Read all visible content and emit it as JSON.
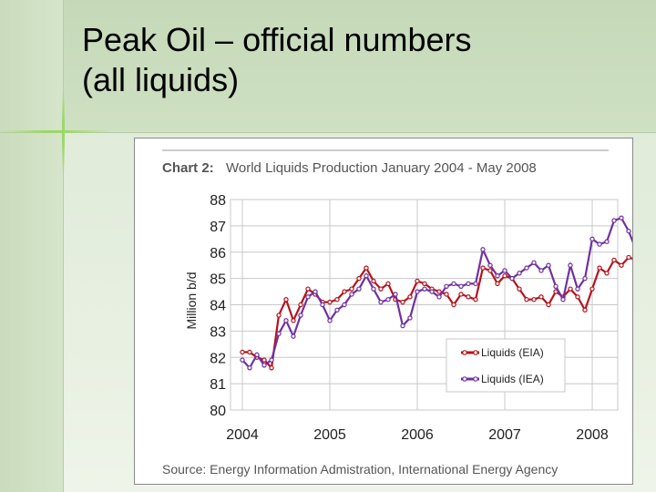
{
  "slide": {
    "title_line1": "Peak Oil – official numbers",
    "title_line2": "(all liquids)"
  },
  "chart_data": {
    "type": "line",
    "title": "Chart 2:",
    "subtitle": "World Liquids Production January 2004 - May 2008",
    "xlabel": "",
    "ylabel": "Million b/d",
    "xlim": [
      2004.0,
      2008.42
    ],
    "ylim": [
      80,
      88
    ],
    "yticks": [
      80,
      81,
      82,
      83,
      84,
      85,
      86,
      87,
      88
    ],
    "xticks": [
      "2004",
      "2005",
      "2006",
      "2007",
      "2008"
    ],
    "grid": true,
    "legend_position": "lower-right",
    "source": "Source: Energy Information Admistration, International Energy Agency",
    "colors": {
      "eia": "#b5121b",
      "iea": "#7030a0",
      "grid": "#c8c8c8"
    },
    "series": [
      {
        "name": "Liquids (EIA)",
        "values": [
          82.2,
          82.2,
          82.0,
          81.9,
          81.6,
          83.6,
          84.2,
          83.4,
          84.0,
          84.6,
          84.4,
          84.1,
          84.1,
          84.2,
          84.5,
          84.6,
          85.0,
          85.4,
          84.9,
          84.6,
          84.8,
          84.2,
          84.1,
          84.3,
          84.9,
          84.8,
          84.6,
          84.5,
          84.4,
          84.0,
          84.4,
          84.3,
          84.2,
          85.4,
          85.3,
          84.8,
          85.1,
          85.0,
          84.6,
          84.2,
          84.2,
          84.3,
          84.0,
          84.5,
          84.3,
          84.6,
          84.3,
          83.8,
          84.6,
          85.4,
          85.2,
          85.7,
          85.5,
          85.8,
          85.7
        ]
      },
      {
        "name": "Liquids (IEA)",
        "values": [
          81.9,
          81.6,
          82.1,
          81.7,
          81.9,
          82.9,
          83.4,
          82.8,
          83.6,
          84.3,
          84.5,
          84.0,
          83.4,
          83.8,
          84.0,
          84.4,
          84.6,
          85.1,
          84.6,
          84.1,
          84.2,
          84.4,
          83.2,
          83.5,
          84.5,
          84.6,
          84.5,
          84.3,
          84.7,
          84.8,
          84.7,
          84.8,
          84.8,
          86.1,
          85.5,
          85.1,
          85.3,
          85.0,
          85.2,
          85.4,
          85.6,
          85.3,
          85.5,
          84.7,
          84.2,
          85.5,
          84.6,
          85.0,
          86.5,
          86.3,
          86.4,
          87.2,
          87.3,
          86.8,
          86.1,
          86.6
        ]
      }
    ]
  }
}
